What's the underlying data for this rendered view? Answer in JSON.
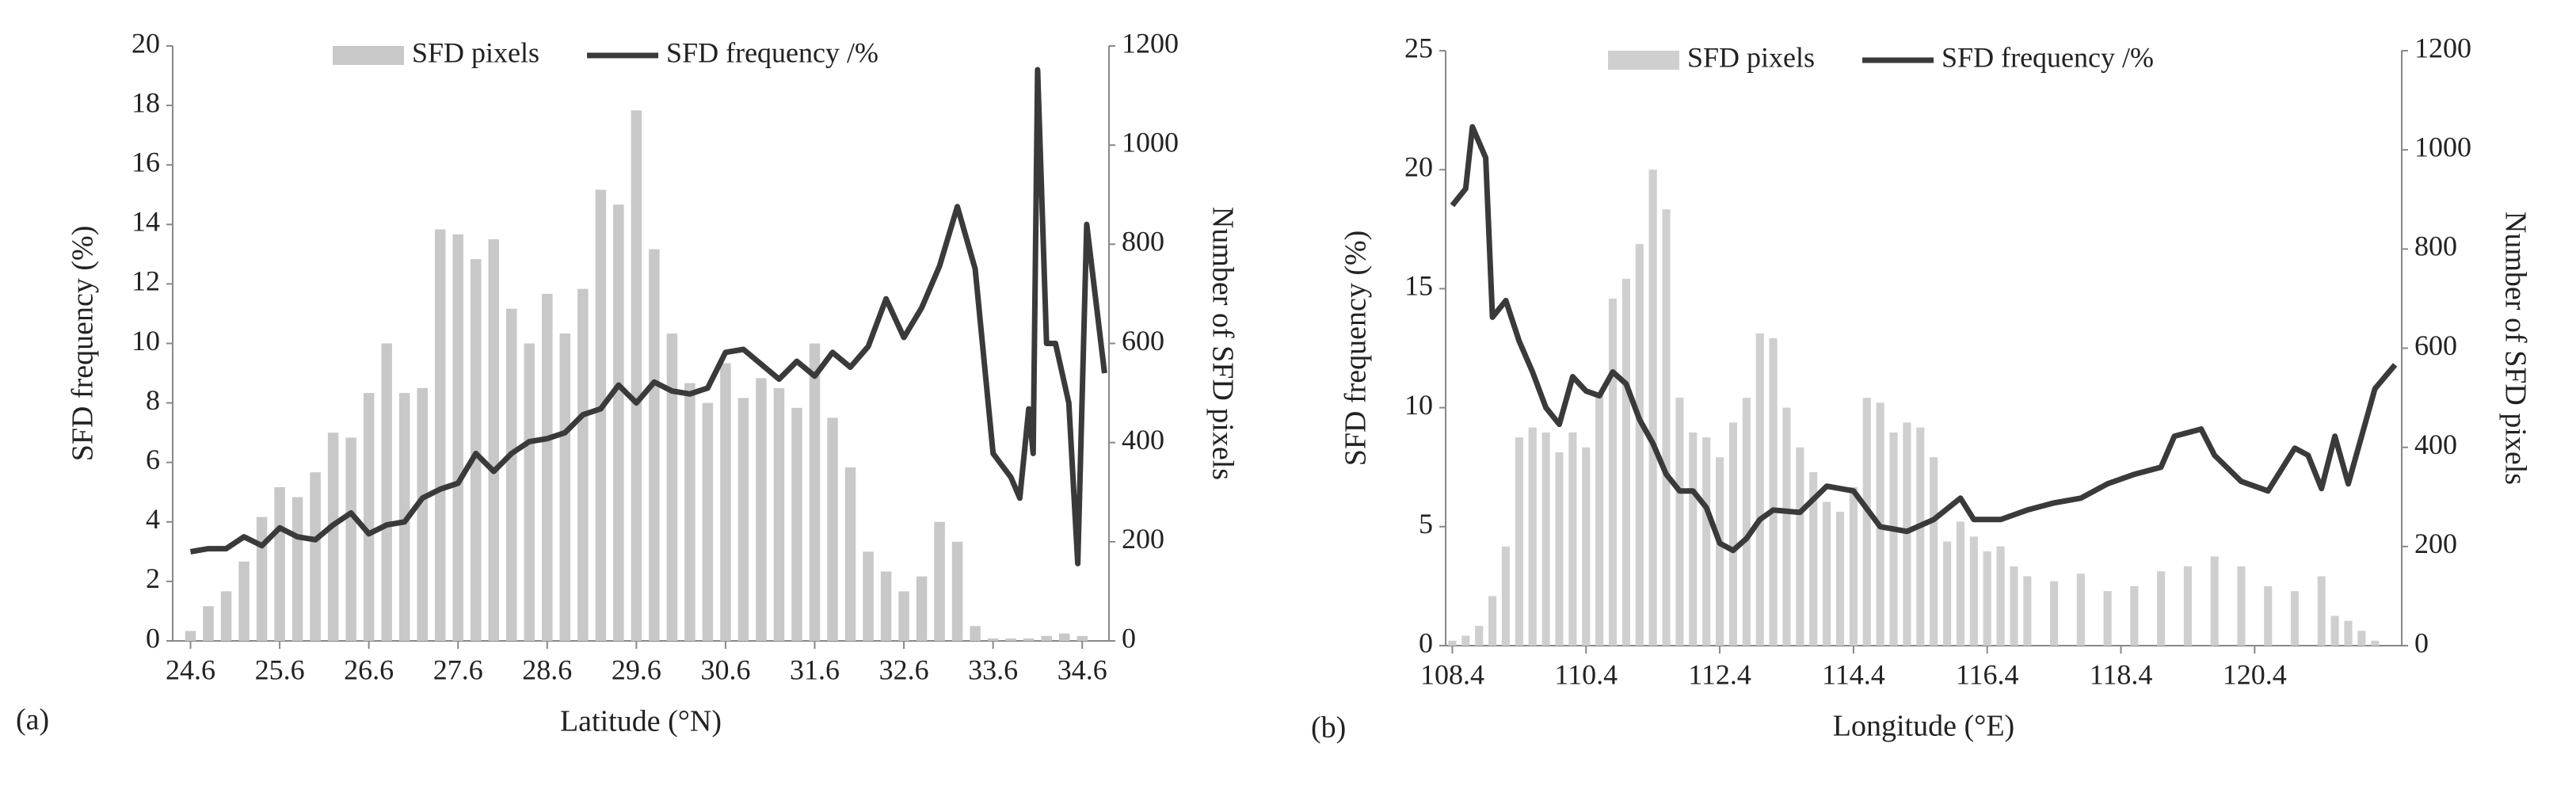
{
  "chart_data": [
    {
      "type": "combo",
      "x_label": "Latitude (°N)",
      "y_label": "SFD frequency (%)",
      "y2_label": "Number of SFD pixels",
      "panel_label": "(a)",
      "xlim": [
        24.4,
        34.9
      ],
      "xticks": [
        24.6,
        25.6,
        26.6,
        27.6,
        28.6,
        29.6,
        30.6,
        31.6,
        32.6,
        33.6,
        34.6
      ],
      "ylim": [
        0,
        20
      ],
      "yticks": [
        0,
        2,
        4,
        6,
        8,
        10,
        12,
        14,
        16,
        18,
        20
      ],
      "y2lim": [
        0,
        1200
      ],
      "y2ticks": [
        0,
        200,
        400,
        600,
        800,
        1000,
        1200
      ],
      "series": [
        {
          "name": "SFD pixels",
          "type": "bar",
          "axis": "y2",
          "color": "#c8c8c8",
          "x": [
            24.6,
            24.8,
            25.0,
            25.2,
            25.4,
            25.6,
            25.8,
            26.0,
            26.2,
            26.4,
            26.6,
            26.8,
            27.0,
            27.2,
            27.4,
            27.6,
            27.8,
            28.0,
            28.2,
            28.4,
            28.6,
            28.8,
            29.0,
            29.2,
            29.4,
            29.6,
            29.8,
            30.0,
            30.2,
            30.4,
            30.6,
            30.8,
            31.0,
            31.2,
            31.4,
            31.6,
            31.8,
            32.0,
            32.2,
            32.4,
            32.6,
            32.8,
            33.0,
            33.2,
            33.4,
            33.6,
            33.8,
            34.0,
            34.2,
            34.4,
            34.6
          ],
          "values": [
            20,
            70,
            100,
            160,
            250,
            310,
            290,
            340,
            420,
            410,
            500,
            600,
            500,
            510,
            830,
            820,
            770,
            810,
            670,
            600,
            700,
            620,
            710,
            910,
            880,
            1070,
            790,
            620,
            520,
            480,
            560,
            490,
            530,
            510,
            470,
            600,
            450,
            350,
            180,
            140,
            100,
            130,
            240,
            200,
            30,
            5,
            5,
            5,
            10,
            15,
            10
          ]
        },
        {
          "name": "SFD frequency /%",
          "type": "line",
          "axis": "y",
          "color": "#3a3a3a",
          "x": [
            24.6,
            24.8,
            25.0,
            25.2,
            25.4,
            25.6,
            25.8,
            26.0,
            26.2,
            26.4,
            26.6,
            26.8,
            27.0,
            27.2,
            27.4,
            27.6,
            27.8,
            28.0,
            28.2,
            28.4,
            28.6,
            28.8,
            29.0,
            29.2,
            29.4,
            29.6,
            29.8,
            30.0,
            30.2,
            30.4,
            30.6,
            30.8,
            31.0,
            31.2,
            31.4,
            31.6,
            31.8,
            32.0,
            32.2,
            32.4,
            32.6,
            32.8,
            33.0,
            33.2,
            33.4,
            33.6,
            33.8,
            33.9,
            34.0,
            34.05,
            34.1,
            34.2,
            34.3,
            34.45,
            34.55,
            34.65,
            34.85
          ],
          "values": [
            3.0,
            3.1,
            3.1,
            3.5,
            3.2,
            3.8,
            3.5,
            3.4,
            3.9,
            4.3,
            3.6,
            3.9,
            4.0,
            4.8,
            5.1,
            5.3,
            6.3,
            5.7,
            6.3,
            6.7,
            6.8,
            7.0,
            7.6,
            7.8,
            8.6,
            8.0,
            8.7,
            8.4,
            8.3,
            8.5,
            9.7,
            9.8,
            9.3,
            8.8,
            9.4,
            8.9,
            9.7,
            9.2,
            9.9,
            11.5,
            10.2,
            11.2,
            12.6,
            14.6,
            12.5,
            6.3,
            5.5,
            4.8,
            7.8,
            6.3,
            19.2,
            10.0,
            10.0,
            8.0,
            2.6,
            14.0,
            9.0
          ]
        }
      ]
    },
    {
      "type": "combo",
      "x_label": "Longitude (°E)",
      "y_label": "SFD frequency  (%)",
      "y2_label": "Number of SFD pixels",
      "panel_label": "(b)",
      "xlim": [
        108.3,
        122.6
      ],
      "xticks": [
        108.4,
        110.4,
        112.4,
        114.4,
        116.4,
        118.4,
        120.4
      ],
      "ylim": [
        0,
        25
      ],
      "yticks": [
        0,
        5,
        10,
        15,
        20,
        25
      ],
      "y2lim": [
        0,
        1200
      ],
      "y2ticks": [
        0,
        200,
        400,
        600,
        800,
        1000,
        1200
      ],
      "series": [
        {
          "name": "SFD pixels",
          "type": "bar",
          "axis": "y2",
          "color": "#cfcfcf",
          "x": [
            108.4,
            108.6,
            108.8,
            109.0,
            109.2,
            109.4,
            109.6,
            109.8,
            110.0,
            110.2,
            110.4,
            110.6,
            110.8,
            111.0,
            111.2,
            111.4,
            111.6,
            111.8,
            112.0,
            112.2,
            112.4,
            112.6,
            112.8,
            113.0,
            113.2,
            113.4,
            113.6,
            113.8,
            114.0,
            114.2,
            114.4,
            114.6,
            114.8,
            115.0,
            115.2,
            115.4,
            115.6,
            115.8,
            116.0,
            116.2,
            116.4,
            116.6,
            116.8,
            117.0,
            117.4,
            117.8,
            118.2,
            118.6,
            119.0,
            119.4,
            119.8,
            120.2,
            120.6,
            121.0,
            121.4,
            121.6,
            121.8,
            122.0,
            122.2
          ],
          "values": [
            10,
            20,
            40,
            100,
            200,
            420,
            440,
            430,
            390,
            430,
            400,
            510,
            700,
            740,
            810,
            960,
            880,
            500,
            430,
            420,
            380,
            450,
            500,
            630,
            620,
            480,
            400,
            350,
            290,
            270,
            320,
            500,
            490,
            430,
            450,
            440,
            380,
            210,
            250,
            220,
            190,
            200,
            160,
            140,
            130,
            145,
            110,
            120,
            150,
            160,
            180,
            160,
            120,
            110,
            140,
            60,
            50,
            30,
            10
          ]
        },
        {
          "name": "SFD frequency /%",
          "type": "line",
          "axis": "y",
          "color": "#3a3a3a",
          "x": [
            108.4,
            108.6,
            108.7,
            108.9,
            109.0,
            109.2,
            109.4,
            109.6,
            109.8,
            110.0,
            110.2,
            110.4,
            110.6,
            110.8,
            111.0,
            111.2,
            111.4,
            111.6,
            111.8,
            112.0,
            112.2,
            112.4,
            112.6,
            112.8,
            113.0,
            113.2,
            113.6,
            114.0,
            114.4,
            114.8,
            115.2,
            115.6,
            116.0,
            116.2,
            116.6,
            117.0,
            117.4,
            117.8,
            118.2,
            118.6,
            119.0,
            119.2,
            119.6,
            119.8,
            120.2,
            120.6,
            121.0,
            121.2,
            121.4,
            121.6,
            121.8,
            122.2,
            122.5
          ],
          "values": [
            18.5,
            19.2,
            21.8,
            20.5,
            13.8,
            14.5,
            12.8,
            11.5,
            10.0,
            9.3,
            11.3,
            10.7,
            10.5,
            11.5,
            11.0,
            9.5,
            8.5,
            7.2,
            6.5,
            6.5,
            5.8,
            4.3,
            4.0,
            4.5,
            5.3,
            5.7,
            5.6,
            6.7,
            6.5,
            5.0,
            4.8,
            5.3,
            6.2,
            5.3,
            5.3,
            5.7,
            6.0,
            6.2,
            6.8,
            7.2,
            7.5,
            8.8,
            9.1,
            8.0,
            6.9,
            6.5,
            8.3,
            8.0,
            6.6,
            8.8,
            6.8,
            10.8,
            11.8
          ]
        }
      ]
    }
  ]
}
